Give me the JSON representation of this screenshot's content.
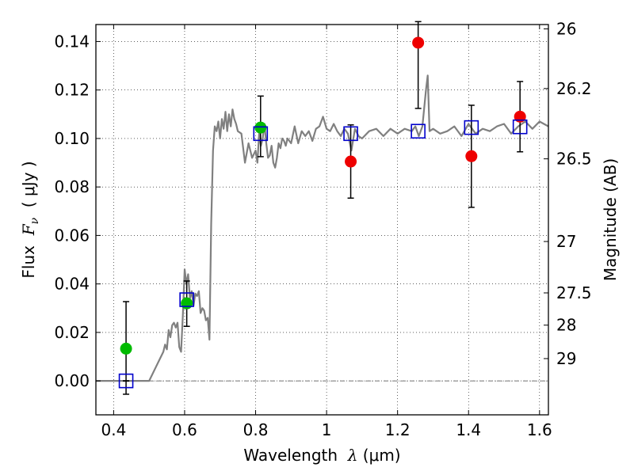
{
  "chart_data": {
    "type": "scatter",
    "title": "",
    "xlabel": {
      "prefix": "Wavelength  ",
      "symbol": "λ",
      "unit": " (μm)"
    },
    "ylabel": {
      "prefix": "Flux  ",
      "symbol": "F",
      "subscript": "ν",
      "unit": "  ( μJy )"
    },
    "ylabel_right": "Magnitude (AB)",
    "xlim": [
      0.35,
      1.625
    ],
    "ylim": [
      -0.014,
      0.147
    ],
    "grid": true,
    "x_ticks": [
      {
        "value": 0.4,
        "label": "0.4"
      },
      {
        "value": 0.6,
        "label": "0.6"
      },
      {
        "value": 0.8,
        "label": "0.8"
      },
      {
        "value": 1.0,
        "label": "1"
      },
      {
        "value": 1.2,
        "label": "1.2"
      },
      {
        "value": 1.4,
        "label": "1.4"
      },
      {
        "value": 1.6,
        "label": "1.6"
      }
    ],
    "y_ticks": [
      {
        "value": 0.0,
        "label": "0.00"
      },
      {
        "value": 0.02,
        "label": "0.02"
      },
      {
        "value": 0.04,
        "label": "0.04"
      },
      {
        "value": 0.06,
        "label": "0.06"
      },
      {
        "value": 0.08,
        "label": "0.08"
      },
      {
        "value": 0.1,
        "label": "0.10"
      },
      {
        "value": 0.12,
        "label": "0.12"
      },
      {
        "value": 0.14,
        "label": "0.14"
      }
    ],
    "y_right_ticks": [
      {
        "flux": 0.1452,
        "label": "26"
      },
      {
        "flux": 0.1206,
        "label": "26.2"
      },
      {
        "flux": 0.0916,
        "label": "26.5"
      },
      {
        "flux": 0.0575,
        "label": "27"
      },
      {
        "flux": 0.0363,
        "label": "27.5"
      },
      {
        "flux": 0.023,
        "label": "28"
      },
      {
        "flux": 0.0092,
        "label": "29"
      }
    ],
    "model_spectrum": {
      "color": "#808080",
      "x": [
        0.35,
        0.5,
        0.52,
        0.54,
        0.545,
        0.55,
        0.555,
        0.56,
        0.565,
        0.57,
        0.575,
        0.58,
        0.585,
        0.59,
        0.595,
        0.6,
        0.605,
        0.61,
        0.615,
        0.62,
        0.625,
        0.63,
        0.635,
        0.64,
        0.645,
        0.65,
        0.655,
        0.66,
        0.665,
        0.67,
        0.675,
        0.68,
        0.685,
        0.69,
        0.695,
        0.7,
        0.705,
        0.71,
        0.715,
        0.72,
        0.725,
        0.73,
        0.735,
        0.74,
        0.745,
        0.75,
        0.76,
        0.77,
        0.78,
        0.79,
        0.8,
        0.805,
        0.81,
        0.815,
        0.82,
        0.825,
        0.83,
        0.835,
        0.84,
        0.845,
        0.85,
        0.855,
        0.86,
        0.865,
        0.87,
        0.875,
        0.88,
        0.885,
        0.89,
        0.9,
        0.91,
        0.92,
        0.93,
        0.94,
        0.95,
        0.96,
        0.97,
        0.98,
        0.99,
        1.0,
        1.01,
        1.02,
        1.03,
        1.04,
        1.05,
        1.06,
        1.07,
        1.08,
        1.09,
        1.1,
        1.12,
        1.14,
        1.16,
        1.18,
        1.2,
        1.22,
        1.24,
        1.25,
        1.26,
        1.27,
        1.28,
        1.285,
        1.29,
        1.3,
        1.32,
        1.34,
        1.36,
        1.38,
        1.4,
        1.42,
        1.44,
        1.46,
        1.48,
        1.5,
        1.52,
        1.54,
        1.56,
        1.58,
        1.6,
        1.625
      ],
      "y": [
        0.0,
        0.0,
        0.006,
        0.012,
        0.015,
        0.013,
        0.021,
        0.018,
        0.023,
        0.024,
        0.022,
        0.024,
        0.014,
        0.012,
        0.027,
        0.046,
        0.04,
        0.044,
        0.034,
        0.037,
        0.031,
        0.036,
        0.035,
        0.037,
        0.028,
        0.03,
        0.029,
        0.025,
        0.026,
        0.017,
        0.065,
        0.095,
        0.105,
        0.103,
        0.107,
        0.1,
        0.108,
        0.104,
        0.111,
        0.103,
        0.11,
        0.105,
        0.112,
        0.108,
        0.106,
        0.103,
        0.102,
        0.09,
        0.098,
        0.092,
        0.095,
        0.09,
        0.102,
        0.097,
        0.1,
        0.106,
        0.098,
        0.092,
        0.093,
        0.097,
        0.09,
        0.088,
        0.092,
        0.098,
        0.096,
        0.1,
        0.099,
        0.097,
        0.1,
        0.098,
        0.105,
        0.098,
        0.103,
        0.101,
        0.103,
        0.099,
        0.104,
        0.105,
        0.109,
        0.104,
        0.103,
        0.106,
        0.103,
        0.101,
        0.104,
        0.102,
        0.095,
        0.104,
        0.101,
        0.1,
        0.103,
        0.104,
        0.101,
        0.104,
        0.102,
        0.104,
        0.103,
        0.105,
        0.101,
        0.105,
        0.12,
        0.126,
        0.103,
        0.104,
        0.102,
        0.103,
        0.105,
        0.101,
        0.106,
        0.102,
        0.104,
        0.103,
        0.105,
        0.106,
        0.102,
        0.105,
        0.107,
        0.104,
        0.107,
        0.105
      ]
    },
    "series": [
      {
        "marker": "circle",
        "color": "#00bb00",
        "points": [
          {
            "x": 0.435,
            "y": 0.0133,
            "yerr_low": 0.0,
            "yerr_high": 0.0327
          },
          {
            "x": 0.606,
            "y": 0.032,
            "yerr_low": 0.0225,
            "yerr_high": 0.0412
          },
          {
            "x": 0.814,
            "y": 0.1045,
            "yerr_low": 0.0925,
            "yerr_high": 0.1175
          }
        ]
      },
      {
        "marker": "circle",
        "color": "#ee0000",
        "points": [
          {
            "x": 1.068,
            "y": 0.0905,
            "yerr_low": 0.0754,
            "yerr_high": 0.1056
          },
          {
            "x": 1.258,
            "y": 0.1395,
            "yerr_low": 0.1124,
            "yerr_high": 0.1482
          },
          {
            "x": 1.408,
            "y": 0.0927,
            "yerr_low": 0.0716,
            "yerr_high": 0.1137
          },
          {
            "x": 1.545,
            "y": 0.109,
            "yerr_low": 0.0945,
            "yerr_high": 0.1235
          }
        ]
      },
      {
        "marker": "open-square",
        "color": "#0000cc",
        "points": [
          {
            "x": 0.435,
            "y": 0.0,
            "yerr_low": -0.0055,
            "yerr_high": 0.0
          },
          {
            "x": 0.606,
            "y": 0.0335,
            "yerr_low": 0.0335,
            "yerr_high": 0.0335
          },
          {
            "x": 0.814,
            "y": 0.102,
            "yerr_low": 0.102,
            "yerr_high": 0.102
          },
          {
            "x": 1.068,
            "y": 0.102,
            "yerr_low": 0.102,
            "yerr_high": 0.102
          },
          {
            "x": 1.258,
            "y": 0.103,
            "yerr_low": 0.103,
            "yerr_high": 0.103
          },
          {
            "x": 1.408,
            "y": 0.1045,
            "yerr_low": 0.1045,
            "yerr_high": 0.1045
          },
          {
            "x": 1.545,
            "y": 0.1048,
            "yerr_low": 0.1048,
            "yerr_high": 0.1048
          }
        ]
      }
    ],
    "zero_line": {
      "y": 0.0,
      "style": "dash-dot"
    }
  }
}
